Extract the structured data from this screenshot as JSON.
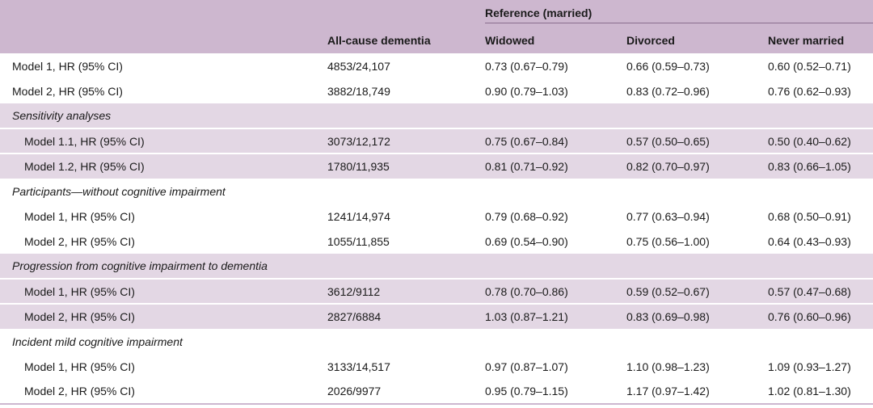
{
  "header": {
    "group_label": "Reference (married)",
    "col_dementia": "All-cause dementia",
    "col_widowed": "Widowed",
    "col_divorced": "Divorced",
    "col_never": "Never married"
  },
  "rows": [
    {
      "label": "Model 1, HR (95% CI)",
      "n": "4853/24,107",
      "widowed": "0.73 (0.67–0.79)",
      "divorced": "0.66 (0.59–0.73)",
      "never": "0.60 (0.52–0.71)"
    },
    {
      "label": "Model 2, HR (95% CI)",
      "n": "3882/18,749",
      "widowed": "0.90 (0.79–1.03)",
      "divorced": "0.83 (0.72–0.96)",
      "never": "0.76 (0.62–0.93)"
    }
  ],
  "sections": [
    {
      "title": "Sensitivity analyses",
      "rows": [
        {
          "label": "Model 1.1, HR (95% CI)",
          "n": "3073/12,172",
          "widowed": "0.75 (0.67–0.84)",
          "divorced": "0.57 (0.50–0.65)",
          "never": "0.50 (0.40–0.62)"
        },
        {
          "label": "Model 1.2, HR (95% CI)",
          "n": "1780/11,935",
          "widowed": "0.81 (0.71–0.92)",
          "divorced": "0.82 (0.70–0.97)",
          "never": "0.83 (0.66–1.05)"
        }
      ]
    },
    {
      "title": "Participants—without cognitive impairment",
      "rows": [
        {
          "label": "Model 1, HR (95% CI)",
          "n": "1241/14,974",
          "widowed": "0.79 (0.68–0.92)",
          "divorced": "0.77 (0.63–0.94)",
          "never": "0.68 (0.50–0.91)"
        },
        {
          "label": "Model 2, HR (95% CI)",
          "n": "1055/11,855",
          "widowed": "0.69 (0.54–0.90)",
          "divorced": "0.75 (0.56–1.00)",
          "never": "0.64 (0.43–0.93)"
        }
      ]
    },
    {
      "title": "Progression from cognitive impairment to dementia",
      "rows": [
        {
          "label": "Model 1, HR (95% CI)",
          "n": "3612/9112",
          "widowed": "0.78 (0.70–0.86)",
          "divorced": "0.59 (0.52–0.67)",
          "never": "0.57 (0.47–0.68)"
        },
        {
          "label": "Model 2, HR (95% CI)",
          "n": "2827/6884",
          "widowed": "1.03 (0.87–1.21)",
          "divorced": "0.83 (0.69–0.98)",
          "never": "0.76 (0.60–0.96)"
        }
      ]
    },
    {
      "title": "Incident mild cognitive impairment",
      "rows": [
        {
          "label": "Model 1, HR (95% CI)",
          "n": "3133/14,517",
          "widowed": "0.97 (0.87–1.07)",
          "divorced": "1.10 (0.98–1.23)",
          "never": "1.09 (0.93–1.27)"
        },
        {
          "label": "Model 2, HR (95% CI)",
          "n": "2026/9977",
          "widowed": "0.95 (0.79–1.15)",
          "divorced": "1.17 (0.97–1.42)",
          "never": "1.02 (0.81–1.30)"
        }
      ]
    }
  ]
}
